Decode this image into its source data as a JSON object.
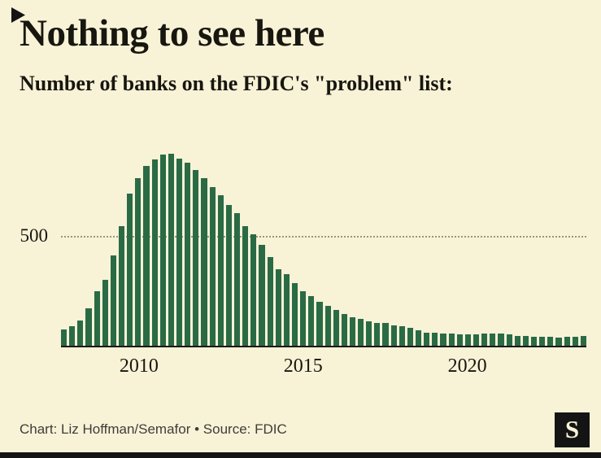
{
  "header": {
    "title": "Nothing to see here",
    "subtitle": "Number of banks on the FDIC's \"problem\" list:"
  },
  "footer": {
    "credit": "Chart: Liz Hoffman/Semafor • Source: FDIC"
  },
  "logo": {
    "name": "Semafor",
    "glyph": "S"
  },
  "colors": {
    "background": "#f8f2d7",
    "bar": "#2a6b45",
    "text": "#17160f",
    "grid": "#9b957d",
    "axis": "#1b1a17",
    "accent_black": "#141414"
  },
  "chart_data": {
    "type": "bar",
    "title": "Nothing to see here",
    "subtitle": "Number of banks on the FDIC's \"problem\" list:",
    "xlabel": "",
    "ylabel": "",
    "ylim": [
      0,
      920
    ],
    "y_gridline": 500,
    "y_gridline_label": "500",
    "grid": "single dotted horizontal gridline at 500",
    "legend": "none",
    "bar_color": "#2a6b45",
    "frequency": "quarterly",
    "x": [
      "2007 Q4",
      "2008 Q1",
      "2008 Q2",
      "2008 Q3",
      "2008 Q4",
      "2009 Q1",
      "2009 Q2",
      "2009 Q3",
      "2009 Q4",
      "2010 Q1",
      "2010 Q2",
      "2010 Q3",
      "2010 Q4",
      "2011 Q1",
      "2011 Q2",
      "2011 Q3",
      "2011 Q4",
      "2012 Q1",
      "2012 Q2",
      "2012 Q3",
      "2012 Q4",
      "2013 Q1",
      "2013 Q2",
      "2013 Q3",
      "2013 Q4",
      "2014 Q1",
      "2014 Q2",
      "2014 Q3",
      "2014 Q4",
      "2015 Q1",
      "2015 Q2",
      "2015 Q3",
      "2015 Q4",
      "2016 Q1",
      "2016 Q2",
      "2016 Q3",
      "2016 Q4",
      "2017 Q1",
      "2017 Q2",
      "2017 Q3",
      "2017 Q4",
      "2018 Q1",
      "2018 Q2",
      "2018 Q3",
      "2018 Q4",
      "2019 Q1",
      "2019 Q2",
      "2019 Q3",
      "2019 Q4",
      "2020 Q1",
      "2020 Q2",
      "2020 Q3",
      "2020 Q4",
      "2021 Q1",
      "2021 Q2",
      "2021 Q3",
      "2021 Q4",
      "2022 Q1",
      "2022 Q2",
      "2022 Q3",
      "2022 Q4",
      "2023 Q1",
      "2023 Q2",
      "2023 Q3"
    ],
    "values": [
      76,
      90,
      117,
      171,
      252,
      305,
      416,
      552,
      702,
      775,
      829,
      860,
      884,
      888,
      865,
      844,
      813,
      772,
      732,
      694,
      651,
      612,
      553,
      515,
      467,
      411,
      354,
      329,
      291,
      253,
      228,
      203,
      183,
      165,
      147,
      132,
      123,
      112,
      105,
      104,
      95,
      92,
      82,
      71,
      60,
      59,
      56,
      55,
      51,
      54,
      52,
      56,
      56,
      55,
      51,
      46,
      44,
      40,
      40,
      42,
      39,
      43,
      43,
      44
    ],
    "x_ticks": [
      {
        "label": "2010",
        "index": 9
      },
      {
        "label": "2015",
        "index": 29
      },
      {
        "label": "2020",
        "index": 49
      }
    ]
  }
}
